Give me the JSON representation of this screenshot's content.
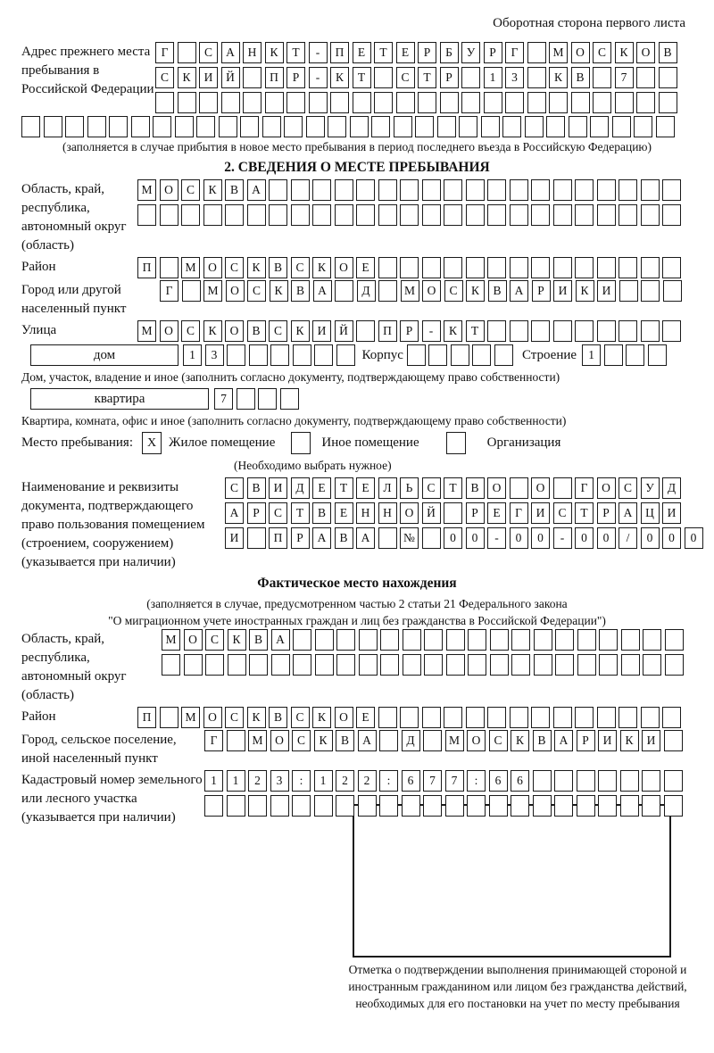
{
  "page": {
    "header_note": "Оборотная сторона первого листа",
    "section2_title": "2. СВЕДЕНИЯ О МЕСТЕ ПРЕБЫВАНИЯ"
  },
  "prev_address": {
    "label": "Адрес прежнего места пребывания в Российской Федерации",
    "rows": [
      "Г САНКТ-ПЕТЕРБУРГ МОСКОВ",
      "СКИЙ ПР-КТ СТР 13 КВ 7",
      "",
      ""
    ],
    "note": "(заполняется в случае прибытия в новое место пребывания в период последнего въезда в Российскую Федерацию)"
  },
  "stay": {
    "region": {
      "label": "Область, край, республика, автономный округ (область)",
      "rows": [
        "МОСКВА",
        ""
      ]
    },
    "district": {
      "label": "Район",
      "value": "П МОСКВСКОЕ"
    },
    "city": {
      "label": "Город или другой населенный пункт",
      "value": "Г МОСКВА Д МОСКВАРИКИ"
    },
    "street": {
      "label": "Улица",
      "value": "МОСКОВСКИЙ ПР-КТ"
    },
    "house": {
      "house_label": "дом",
      "house_value": "13",
      "korpus_label": "Корпус",
      "korpus_value": "",
      "stroenie_label": "Строение",
      "stroenie_value": "1",
      "note": "Дом, участок, владение и иное (заполнить согласно документу, подтверждающему право собственности)"
    },
    "apartment": {
      "label": "квартира",
      "value": "7",
      "note": "Квартира, комната, офис и иное (заполнить согласно документу, подтверждающему право собственности)"
    },
    "stay_place": {
      "label": "Место пребывания:",
      "options": [
        {
          "label": "Жилое помещение",
          "mark": "X"
        },
        {
          "label": "Иное помещение",
          "mark": ""
        },
        {
          "label": "Организация",
          "mark": ""
        }
      ],
      "note": "(Необходимо выбрать нужное)"
    },
    "document": {
      "label": "Наименование и реквизиты документа, подтверждающего право пользования помещением (строением, сооружением) (указывается при наличии)",
      "rows": [
        "СВИДЕТЕЛЬСТВО О ГОСУД",
        "АРСТВЕННОЙ РЕГИСТРАЦИ",
        "И ПРАВА № 00-00-00/000"
      ]
    }
  },
  "actual_location": {
    "title": "Фактическое место нахождения",
    "note_line1": "(заполняется в случае, предусмотренном частью 2 статьи 21 Федерального закона",
    "note_line2": "\"О миграционном учете иностранных граждан и лиц без гражданства в Российской Федерации\")",
    "region": {
      "label": "Область, край, республика, автономный округ (область)",
      "rows": [
        "МОСКВА",
        ""
      ]
    },
    "district": {
      "label": "Район",
      "value": "П МОСКВСКОЕ"
    },
    "city": {
      "label": "Город, сельское поселение, иной населенный пункт",
      "value": "Г МОСКВА Д МОСКВАРИКИ"
    },
    "cadastral": {
      "label": "Кадастровый номер земельного или лесного участка (указывается при наличии)",
      "rows": [
        "1123:122:677:66",
        ""
      ]
    }
  },
  "confirmation": {
    "caption": "Отметка о подтверждении выполнения принимающей стороной и иностранным гражданином или лицом без гражданства действий, необходимых для его постановки на учет по месту пребывания"
  }
}
